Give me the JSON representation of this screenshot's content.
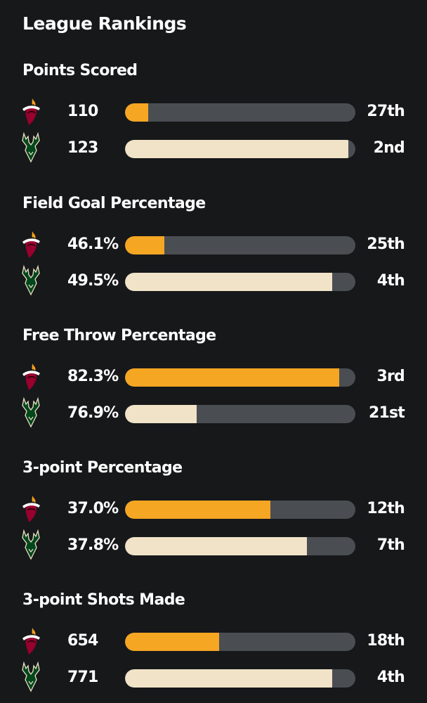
{
  "page_title": "League Rankings",
  "colors": {
    "heat_bar": "#f5a623",
    "bucks_bar": "#f0e3c7",
    "track": "#4a4e53",
    "background": "#17181a",
    "heat_logo_red": "#98002e",
    "heat_logo_orange": "#f9a01b",
    "bucks_logo_green": "#00471b",
    "bucks_logo_cream": "#eee1c6"
  },
  "teams": {
    "heat": {
      "logo_icon": "miami-heat-logo-icon"
    },
    "bucks": {
      "logo_icon": "milwaukee-bucks-logo-icon"
    }
  },
  "sections": [
    {
      "title": "Points Scored",
      "rows": [
        {
          "team": "heat",
          "value": "110",
          "rank": "27th",
          "bar_fill": 0.1
        },
        {
          "team": "bucks",
          "value": "123",
          "rank": "2nd",
          "bar_fill": 0.97
        }
      ]
    },
    {
      "title": "Field Goal Percentage",
      "rows": [
        {
          "team": "heat",
          "value": "46.1%",
          "rank": "25th",
          "bar_fill": 0.17
        },
        {
          "team": "bucks",
          "value": "49.5%",
          "rank": "4th",
          "bar_fill": 0.9
        }
      ]
    },
    {
      "title": "Free Throw Percentage",
      "rows": [
        {
          "team": "heat",
          "value": "82.3%",
          "rank": "3rd",
          "bar_fill": 0.93
        },
        {
          "team": "bucks",
          "value": "76.9%",
          "rank": "21st",
          "bar_fill": 0.31
        }
      ]
    },
    {
      "title": "3-point Percentage",
      "rows": [
        {
          "team": "heat",
          "value": "37.0%",
          "rank": "12th",
          "bar_fill": 0.63
        },
        {
          "team": "bucks",
          "value": "37.8%",
          "rank": "7th",
          "bar_fill": 0.79
        }
      ]
    },
    {
      "title": "3-point Shots Made",
      "rows": [
        {
          "team": "heat",
          "value": "654",
          "rank": "18th",
          "bar_fill": 0.41
        },
        {
          "team": "bucks",
          "value": "771",
          "rank": "4th",
          "bar_fill": 0.9
        }
      ]
    }
  ]
}
